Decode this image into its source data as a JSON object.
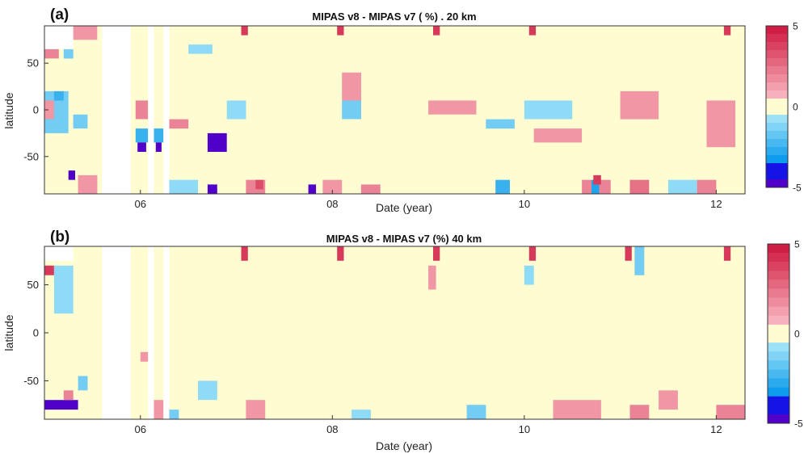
{
  "figure": {
    "panel_a_label": "(a)",
    "panel_b_label": "(b)"
  },
  "chart_data": [
    {
      "type": "heatmap",
      "panel": "(a)",
      "title": "MIPAS v8 - MIPAS v7 ( %) . 20 km",
      "xlabel": "Date (year)",
      "ylabel": "latitude",
      "xlim": [
        2005.0,
        2012.3
      ],
      "ylim": [
        -90,
        90
      ],
      "x_ticks": [
        2006,
        2008,
        2010,
        2012
      ],
      "x_tick_labels": [
        "06",
        "08",
        "10",
        "12"
      ],
      "y_ticks": [
        -50,
        0,
        50
      ],
      "y_tick_labels": [
        "-50",
        "0",
        "50"
      ],
      "colorbar": {
        "min": -5,
        "max": 5,
        "tick_labels": [
          "-5",
          "0",
          "5"
        ]
      },
      "data_gaps_years": [
        [
          2005.0,
          2005.3
        ],
        [
          2005.6,
          2005.9
        ],
        [
          2006.08,
          2006.14
        ],
        [
          2006.24,
          2006.3
        ]
      ],
      "gap_lat_range_2005": [
        65,
        90
      ],
      "patches": [
        {
          "t0": 2005.3,
          "t1": 2005.55,
          "lat0": 75,
          "lat1": 90,
          "v": 1.5
        },
        {
          "t0": 2005.0,
          "t1": 2005.15,
          "lat0": 55,
          "lat1": 70,
          "v": 2.0
        },
        {
          "t0": 2005.2,
          "t1": 2005.3,
          "lat0": 55,
          "lat1": 65,
          "v": -1.5
        },
        {
          "t0": 2005.0,
          "t1": 2005.25,
          "lat0": -25,
          "lat1": 20,
          "v": -1.5
        },
        {
          "t0": 2005.1,
          "t1": 2005.2,
          "lat0": 10,
          "lat1": 20,
          "v": -2.5
        },
        {
          "t0": 2005.0,
          "t1": 2005.1,
          "lat0": -10,
          "lat1": 10,
          "v": 1.5
        },
        {
          "t0": 2005.3,
          "t1": 2005.45,
          "lat0": -20,
          "lat1": -5,
          "v": -1.5
        },
        {
          "t0": 2005.25,
          "t1": 2005.32,
          "lat0": -75,
          "lat1": -65,
          "v": -4.5
        },
        {
          "t0": 2005.35,
          "t1": 2005.55,
          "lat0": -90,
          "lat1": -70,
          "v": 1.5
        },
        {
          "t0": 2005.95,
          "t1": 2006.08,
          "lat0": -10,
          "lat1": 10,
          "v": 2.0
        },
        {
          "t0": 2005.95,
          "t1": 2006.08,
          "lat0": -35,
          "lat1": -20,
          "v": -2.5
        },
        {
          "t0": 2005.97,
          "t1": 2006.06,
          "lat0": -45,
          "lat1": -35,
          "v": -4.5
        },
        {
          "t0": 2006.14,
          "t1": 2006.24,
          "lat0": -35,
          "lat1": -20,
          "v": -2.5
        },
        {
          "t0": 2006.16,
          "t1": 2006.22,
          "lat0": -45,
          "lat1": -35,
          "v": -4.5
        },
        {
          "t0": 2006.3,
          "t1": 2006.5,
          "lat0": -20,
          "lat1": -10,
          "v": 2.0
        },
        {
          "t0": 2006.3,
          "t1": 2006.6,
          "lat0": -90,
          "lat1": -75,
          "v": -1.0
        },
        {
          "t0": 2006.7,
          "t1": 2006.9,
          "lat0": -45,
          "lat1": -25,
          "v": -4.5
        },
        {
          "t0": 2006.7,
          "t1": 2006.8,
          "lat0": -90,
          "lat1": -80,
          "v": -4.5
        },
        {
          "t0": 2006.5,
          "t1": 2006.75,
          "lat0": 60,
          "lat1": 70,
          "v": -1.0
        },
        {
          "t0": 2006.9,
          "t1": 2007.1,
          "lat0": -10,
          "lat1": 10,
          "v": -1.0
        },
        {
          "t0": 2007.05,
          "t1": 2007.12,
          "lat0": 80,
          "lat1": 90,
          "v": 4.0
        },
        {
          "t0": 2007.1,
          "t1": 2007.3,
          "lat0": -90,
          "lat1": -75,
          "v": 2.0
        },
        {
          "t0": 2007.2,
          "t1": 2007.28,
          "lat0": -85,
          "lat1": -75,
          "v": 3.5
        },
        {
          "t0": 2007.75,
          "t1": 2007.83,
          "lat0": -90,
          "lat1": -80,
          "v": -4.5
        },
        {
          "t0": 2007.9,
          "t1": 2008.1,
          "lat0": -90,
          "lat1": -75,
          "v": 1.5
        },
        {
          "t0": 2008.05,
          "t1": 2008.12,
          "lat0": 80,
          "lat1": 90,
          "v": 4.0
        },
        {
          "t0": 2008.1,
          "t1": 2008.3,
          "lat0": 10,
          "lat1": 40,
          "v": 1.5
        },
        {
          "t0": 2008.1,
          "t1": 2008.3,
          "lat0": -10,
          "lat1": 10,
          "v": -1.5
        },
        {
          "t0": 2008.3,
          "t1": 2008.5,
          "lat0": -90,
          "lat1": -80,
          "v": 2.0
        },
        {
          "t0": 2009.05,
          "t1": 2009.12,
          "lat0": 80,
          "lat1": 90,
          "v": 4.0
        },
        {
          "t0": 2009.0,
          "t1": 2009.5,
          "lat0": -5,
          "lat1": 10,
          "v": 1.5
        },
        {
          "t0": 2009.6,
          "t1": 2009.9,
          "lat0": -20,
          "lat1": -10,
          "v": -1.5
        },
        {
          "t0": 2009.7,
          "t1": 2009.85,
          "lat0": -90,
          "lat1": -75,
          "v": -2.5
        },
        {
          "t0": 2010.05,
          "t1": 2010.12,
          "lat0": 80,
          "lat1": 90,
          "v": 4.0
        },
        {
          "t0": 2010.0,
          "t1": 2010.5,
          "lat0": -10,
          "lat1": 10,
          "v": -1.0
        },
        {
          "t0": 2010.1,
          "t1": 2010.6,
          "lat0": -35,
          "lat1": -20,
          "v": 1.5
        },
        {
          "t0": 2010.6,
          "t1": 2010.9,
          "lat0": -90,
          "lat1": -75,
          "v": 2.0
        },
        {
          "t0": 2010.7,
          "t1": 2010.78,
          "lat0": -90,
          "lat1": -75,
          "v": -3.0
        },
        {
          "t0": 2010.72,
          "t1": 2010.8,
          "lat0": -80,
          "lat1": -70,
          "v": 4.0
        },
        {
          "t0": 2011.0,
          "t1": 2011.4,
          "lat0": -10,
          "lat1": 20,
          "v": 1.5
        },
        {
          "t0": 2011.1,
          "t1": 2011.3,
          "lat0": -90,
          "lat1": -75,
          "v": 2.5
        },
        {
          "t0": 2011.5,
          "t1": 2011.8,
          "lat0": -90,
          "lat1": -75,
          "v": -1.0
        },
        {
          "t0": 2011.9,
          "t1": 2012.2,
          "lat0": -40,
          "lat1": 10,
          "v": 1.5
        },
        {
          "t0": 2012.08,
          "t1": 2012.15,
          "lat0": 80,
          "lat1": 90,
          "v": 4.0
        },
        {
          "t0": 2011.8,
          "t1": 2012.0,
          "lat0": -90,
          "lat1": -75,
          "v": 2.0
        }
      ]
    },
    {
      "type": "heatmap",
      "panel": "(b)",
      "title": "MIPAS v8 - MIPAS v7 (%)  40 km",
      "xlabel": "Date (year)",
      "ylabel": "latitude",
      "xlim": [
        2005.0,
        2012.3
      ],
      "ylim": [
        -90,
        90
      ],
      "x_ticks": [
        2006,
        2008,
        2010,
        2012
      ],
      "x_tick_labels": [
        "06",
        "08",
        "10",
        "12"
      ],
      "y_ticks": [
        -50,
        0,
        50
      ],
      "y_tick_labels": [
        "-50",
        "0",
        "50"
      ],
      "colorbar": {
        "min": -5,
        "max": 5,
        "tick_labels": [
          "-5",
          "0",
          "5"
        ]
      },
      "data_gaps_years": [
        [
          2005.0,
          2005.3
        ],
        [
          2005.6,
          2005.9
        ],
        [
          2006.08,
          2006.14
        ],
        [
          2006.24,
          2006.3
        ]
      ],
      "gap_lat_range_2005": [
        75,
        90
      ],
      "patches": [
        {
          "t0": 2005.0,
          "t1": 2005.1,
          "lat0": 60,
          "lat1": 70,
          "v": 4.0
        },
        {
          "t0": 2005.1,
          "t1": 2005.3,
          "lat0": 20,
          "lat1": 70,
          "v": -1.0
        },
        {
          "t0": 2005.0,
          "t1": 2005.35,
          "lat0": -80,
          "lat1": -70,
          "v": -5.0
        },
        {
          "t0": 2005.2,
          "t1": 2005.3,
          "lat0": -70,
          "lat1": -60,
          "v": 2.0
        },
        {
          "t0": 2005.35,
          "t1": 2005.45,
          "lat0": -60,
          "lat1": -45,
          "v": -1.5
        },
        {
          "t0": 2006.0,
          "t1": 2006.08,
          "lat0": -30,
          "lat1": -20,
          "v": 1.5
        },
        {
          "t0": 2006.14,
          "t1": 2006.24,
          "lat0": -90,
          "lat1": -70,
          "v": 1.5
        },
        {
          "t0": 2006.3,
          "t1": 2006.4,
          "lat0": -90,
          "lat1": -80,
          "v": -1.5
        },
        {
          "t0": 2006.6,
          "t1": 2006.8,
          "lat0": -70,
          "lat1": -50,
          "v": -1.0
        },
        {
          "t0": 2007.05,
          "t1": 2007.12,
          "lat0": 75,
          "lat1": 90,
          "v": 4.0
        },
        {
          "t0": 2007.1,
          "t1": 2007.3,
          "lat0": -90,
          "lat1": -70,
          "v": 1.5
        },
        {
          "t0": 2008.05,
          "t1": 2008.12,
          "lat0": 75,
          "lat1": 90,
          "v": 4.0
        },
        {
          "t0": 2008.2,
          "t1": 2008.4,
          "lat0": -90,
          "lat1": -80,
          "v": -1.0
        },
        {
          "t0": 2009.0,
          "t1": 2009.08,
          "lat0": 45,
          "lat1": 70,
          "v": 1.5
        },
        {
          "t0": 2009.05,
          "t1": 2009.12,
          "lat0": 75,
          "lat1": 90,
          "v": 4.0
        },
        {
          "t0": 2009.4,
          "t1": 2009.6,
          "lat0": -90,
          "lat1": -75,
          "v": -1.5
        },
        {
          "t0": 2010.05,
          "t1": 2010.12,
          "lat0": 75,
          "lat1": 90,
          "v": 4.0
        },
        {
          "t0": 2010.0,
          "t1": 2010.1,
          "lat0": 50,
          "lat1": 70,
          "v": -1.0
        },
        {
          "t0": 2010.3,
          "t1": 2010.8,
          "lat0": -90,
          "lat1": -70,
          "v": 1.5
        },
        {
          "t0": 2011.05,
          "t1": 2011.12,
          "lat0": 75,
          "lat1": 90,
          "v": 4.0
        },
        {
          "t0": 2011.1,
          "t1": 2011.3,
          "lat0": -90,
          "lat1": -75,
          "v": 2.0
        },
        {
          "t0": 2011.15,
          "t1": 2011.25,
          "lat0": 60,
          "lat1": 90,
          "v": -1.5
        },
        {
          "t0": 2011.4,
          "t1": 2011.6,
          "lat0": -80,
          "lat1": -60,
          "v": 1.5
        },
        {
          "t0": 2012.08,
          "t1": 2012.15,
          "lat0": 75,
          "lat1": 90,
          "v": 4.0
        },
        {
          "t0": 2012.0,
          "t1": 2012.3,
          "lat0": -90,
          "lat1": -75,
          "v": 2.0
        }
      ]
    }
  ]
}
